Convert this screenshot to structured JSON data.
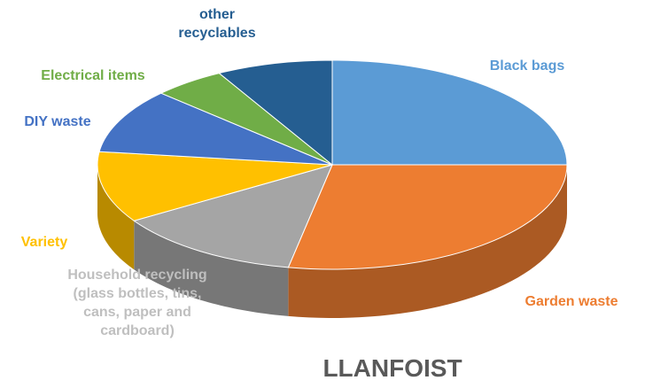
{
  "chart_data": {
    "type": "pie3d",
    "title": "LLANFOIST",
    "categories": [
      "Black bags",
      "Garden waste",
      "Household recycling (glass bottles, tins, cans, paper and cardboard)",
      "Variety",
      "DIY waste",
      "Electrical items",
      "other recyclables"
    ],
    "values": [
      25,
      28,
      13,
      11,
      10,
      5,
      8
    ],
    "colors": [
      "#5b9bd5",
      "#ed7d31",
      "#a5a5a5",
      "#ffc000",
      "#4472c4",
      "#70ad47",
      "#255e91"
    ]
  }
}
